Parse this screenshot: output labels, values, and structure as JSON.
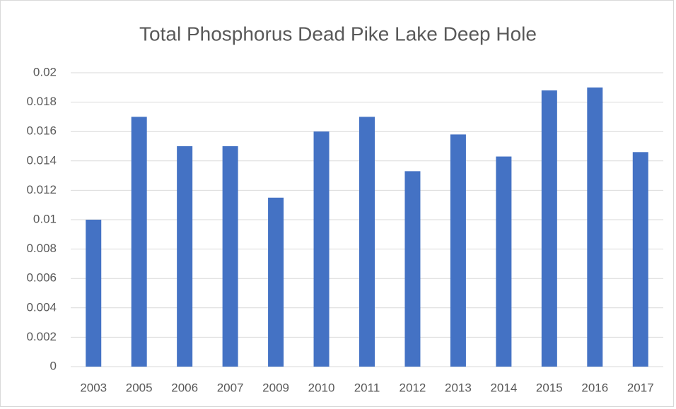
{
  "chart_data": {
    "type": "bar",
    "title": "Total Phosphorus Dead Pike Lake Deep Hole",
    "categories": [
      "2003",
      "2005",
      "2006",
      "2007",
      "2009",
      "2010",
      "2011",
      "2012",
      "2013",
      "2014",
      "2015",
      "2016",
      "2017"
    ],
    "values": [
      0.01,
      0.017,
      0.015,
      0.015,
      0.0115,
      0.016,
      0.017,
      0.0133,
      0.0158,
      0.0143,
      0.0188,
      0.019,
      0.0146
    ],
    "color": "#4472c4",
    "ylim": [
      0,
      0.02
    ],
    "yticks": [
      0,
      0.002,
      0.004,
      0.006,
      0.008,
      0.01,
      0.012,
      0.014,
      0.016,
      0.018,
      0.02
    ],
    "grid": true
  }
}
